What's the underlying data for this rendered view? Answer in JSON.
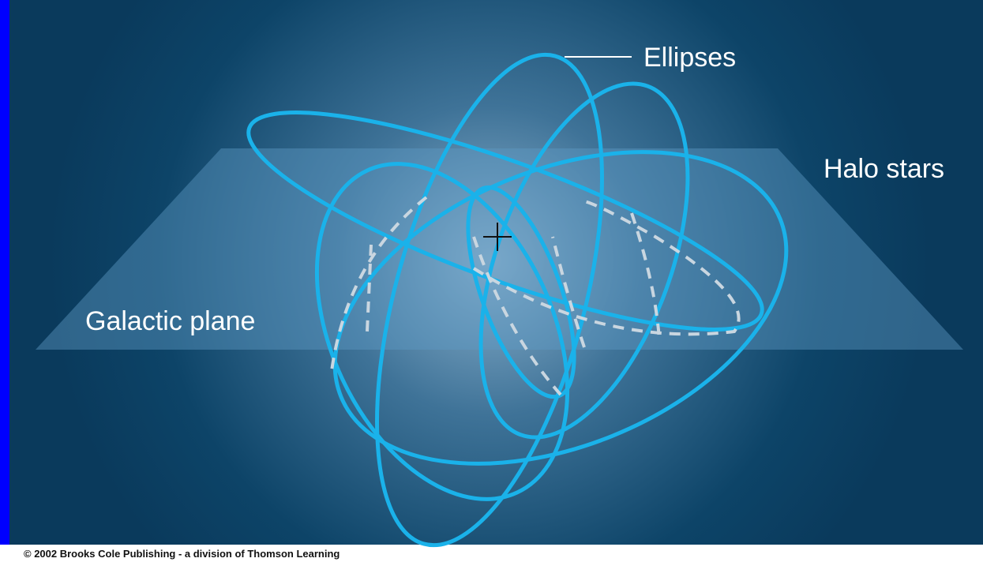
{
  "labels": {
    "ellipses": "Ellipses",
    "halo_stars": "Halo stars",
    "galactic_plane": "Galactic plane"
  },
  "footer": {
    "copyright": "© 2002 Brooks Cole Publishing - a division of Thomson Learning"
  }
}
